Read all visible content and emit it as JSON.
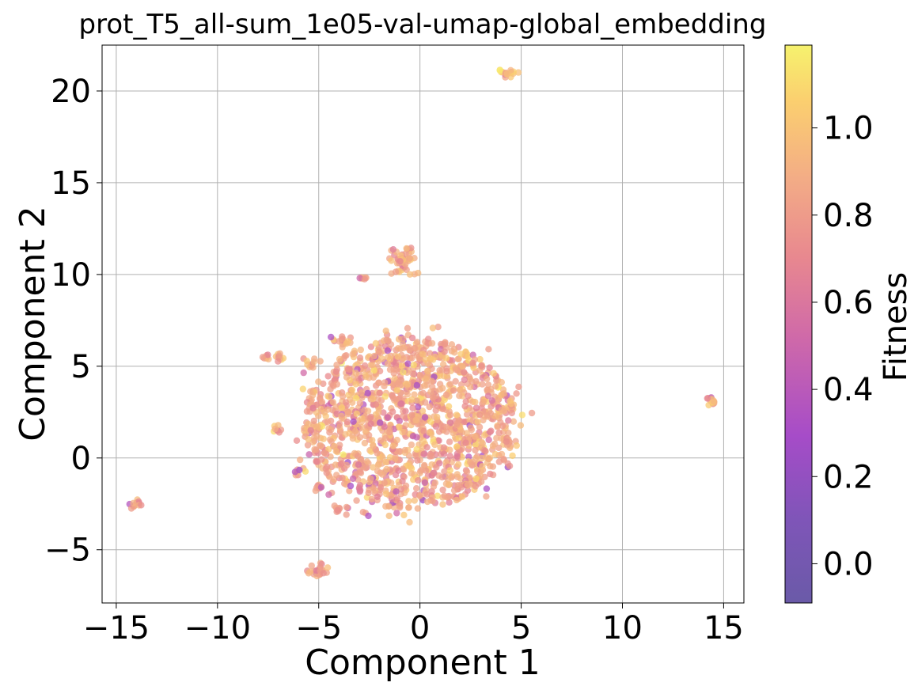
{
  "chart_data": {
    "type": "scatter",
    "title": "prot_T5_all-sum_1e05-val-umap-global_embedding",
    "xlabel": "Component 1",
    "ylabel": "Component 2",
    "xlim": [
      -15.7,
      16.0
    ],
    "ylim": [
      -7.9,
      22.5
    ],
    "xticks": [
      -15,
      -10,
      -5,
      0,
      5,
      10,
      15
    ],
    "xtick_labels": [
      "−15",
      "−10",
      "−5",
      "0",
      "5",
      "10",
      "15"
    ],
    "yticks": [
      -5,
      0,
      5,
      10,
      15,
      20
    ],
    "ytick_labels": [
      "−5",
      "0",
      "5",
      "10",
      "15",
      "20"
    ],
    "grid": true,
    "colorbar": {
      "label": "Fitness",
      "range": [
        -0.09,
        1.19
      ],
      "ticks": [
        0.0,
        0.2,
        0.4,
        0.6,
        0.8,
        1.0
      ],
      "tick_labels": [
        "0.0",
        "0.2",
        "0.4",
        "0.6",
        "0.8",
        "1.0"
      ],
      "colormap": "plasma"
    },
    "clusters": [
      {
        "center": [
          -0.5,
          1.9
        ],
        "spread": [
          3.0,
          2.4
        ],
        "count": 1400,
        "fitness_mean": 0.88
      },
      {
        "center": [
          4.4,
          21.0
        ],
        "spread": [
          0.2,
          0.1
        ],
        "count": 18,
        "fitness_mean": 0.95
      },
      {
        "center": [
          -0.9,
          10.6
        ],
        "spread": [
          0.35,
          0.45
        ],
        "count": 45,
        "fitness_mean": 0.9
      },
      {
        "center": [
          -2.7,
          9.8
        ],
        "spread": [
          0.12,
          0.05
        ],
        "count": 6,
        "fitness_mean": 0.85
      },
      {
        "center": [
          14.4,
          3.1
        ],
        "spread": [
          0.15,
          0.12
        ],
        "count": 14,
        "fitness_mean": 0.95
      },
      {
        "center": [
          -14.1,
          -2.5
        ],
        "spread": [
          0.15,
          0.12
        ],
        "count": 12,
        "fitness_mean": 0.85
      },
      {
        "center": [
          -5.0,
          -6.1
        ],
        "spread": [
          0.25,
          0.15
        ],
        "count": 26,
        "fitness_mean": 0.85
      },
      {
        "center": [
          -7.6,
          5.5
        ],
        "spread": [
          0.15,
          0.05
        ],
        "count": 8,
        "fitness_mean": 0.9
      },
      {
        "center": [
          -6.9,
          5.5
        ],
        "spread": [
          0.15,
          0.1
        ],
        "count": 10,
        "fitness_mean": 0.92
      },
      {
        "center": [
          -6.9,
          1.6
        ],
        "spread": [
          0.2,
          0.1
        ],
        "count": 8,
        "fitness_mean": 0.9
      },
      {
        "center": [
          -5.4,
          5.2
        ],
        "spread": [
          0.2,
          0.2
        ],
        "count": 10,
        "fitness_mean": 0.85
      },
      {
        "center": [
          -4.0,
          6.4
        ],
        "spread": [
          0.4,
          0.15
        ],
        "count": 14,
        "fitness_mean": 0.9
      },
      {
        "center": [
          -3.9,
          -2.8
        ],
        "spread": [
          0.2,
          0.15
        ],
        "count": 10,
        "fitness_mean": 0.8
      },
      {
        "center": [
          2.3,
          -1.5
        ],
        "spread": [
          0.2,
          0.15
        ],
        "count": 8,
        "fitness_mean": 0.9
      },
      {
        "center": [
          4.4,
          0.9
        ],
        "spread": [
          0.15,
          0.1
        ],
        "count": 6,
        "fitness_mean": 0.8
      },
      {
        "center": [
          3.9,
          2.5
        ],
        "spread": [
          0.15,
          0.1
        ],
        "count": 6,
        "fitness_mean": 0.9
      },
      {
        "center": [
          -6.0,
          -0.7
        ],
        "spread": [
          0.2,
          0.15
        ],
        "count": 8,
        "fitness_mean": 0.9
      },
      {
        "center": [
          -4.9,
          -1.7
        ],
        "spread": [
          0.2,
          0.15
        ],
        "count": 8,
        "fitness_mean": 0.88
      }
    ]
  }
}
